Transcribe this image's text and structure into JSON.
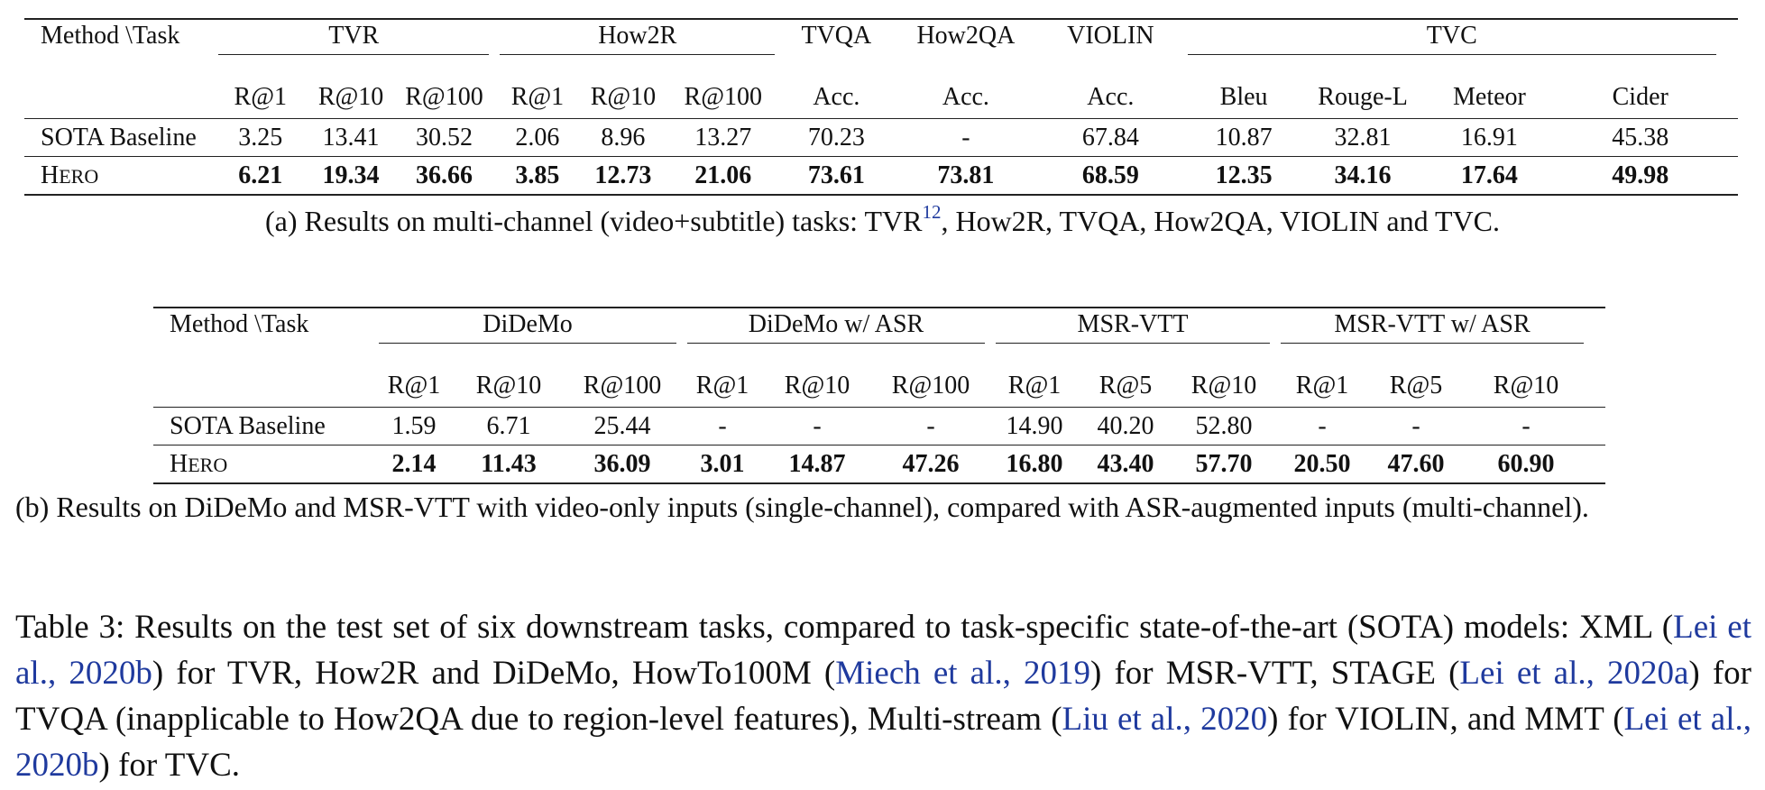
{
  "table_a": {
    "method_header": "Method \\Task",
    "groups": [
      "TVR",
      "How2R",
      "TVQA",
      "How2QA",
      "VIOLIN",
      "TVC"
    ],
    "subheaders": [
      "R@1",
      "R@10",
      "R@100",
      "R@1",
      "R@10",
      "R@100",
      "Acc.",
      "Acc.",
      "Acc.",
      "Bleu",
      "Rouge-L",
      "Meteor",
      "Cider"
    ],
    "rows": [
      {
        "method": "SOTA Baseline",
        "values": [
          "3.25",
          "13.41",
          "30.52",
          "2.06",
          "8.96",
          "13.27",
          "70.23",
          "-",
          "67.84",
          "10.87",
          "32.81",
          "16.91",
          "45.38"
        ]
      },
      {
        "method_cap": "H",
        "method_rest": "ERO",
        "values": [
          "6.21",
          "19.34",
          "36.66",
          "3.85",
          "12.73",
          "21.06",
          "73.61",
          "73.81",
          "68.59",
          "12.35",
          "34.16",
          "17.64",
          "49.98"
        ]
      }
    ],
    "caption_before": "(a) Results on multi-channel (video+subtitle) tasks: TVR",
    "caption_footnote": "12",
    "caption_after": ", How2R, TVQA, How2QA, VIOLIN and TVC."
  },
  "table_b": {
    "method_header": "Method \\Task",
    "groups": [
      "DiDeMo",
      "DiDeMo w/ ASR",
      "MSR-VTT",
      "MSR-VTT w/ ASR"
    ],
    "subheaders": [
      "R@1",
      "R@10",
      "R@100",
      "R@1",
      "R@10",
      "R@100",
      "R@1",
      "R@5",
      "R@10",
      "R@1",
      "R@5",
      "R@10"
    ],
    "rows": [
      {
        "method": "SOTA Baseline",
        "values": [
          "1.59",
          "6.71",
          "25.44",
          "-",
          "-",
          "-",
          "14.90",
          "40.20",
          "52.80",
          "-",
          "-",
          "-"
        ]
      },
      {
        "method_cap": "H",
        "method_rest": "ERO",
        "values": [
          "2.14",
          "11.43",
          "36.09",
          "3.01",
          "14.87",
          "47.26",
          "16.80",
          "43.40",
          "57.70",
          "20.50",
          "47.60",
          "60.90"
        ]
      }
    ],
    "caption": "(b) Results on DiDeMo and MSR-VTT with video-only inputs (single-channel), compared with ASR-augmented inputs (multi-channel)."
  },
  "main_caption": {
    "p1": "Table 3: Results on the test set of six downstream tasks, compared to task-specific state-of-the-art (SOTA) models: XML (",
    "c1": "Lei et al., 2020b",
    "p2": ") for TVR, How2R and DiDeMo, HowTo100M (",
    "c2": "Miech et al., 2019",
    "p3": ") for MSR-VTT, STAGE (",
    "c3": "Lei et al., 2020a",
    "p4": ") for TVQA (inapplicable to How2QA due to region-level features), Multi-stream (",
    "c4": "Liu et al., 2020",
    "p5": ") for VIOLIN, and MMT (",
    "c5": "Lei et al., 2020b",
    "p6": ") for TVC."
  },
  "colors": {
    "citation": "#1f3a9e",
    "rule": "#222222"
  }
}
